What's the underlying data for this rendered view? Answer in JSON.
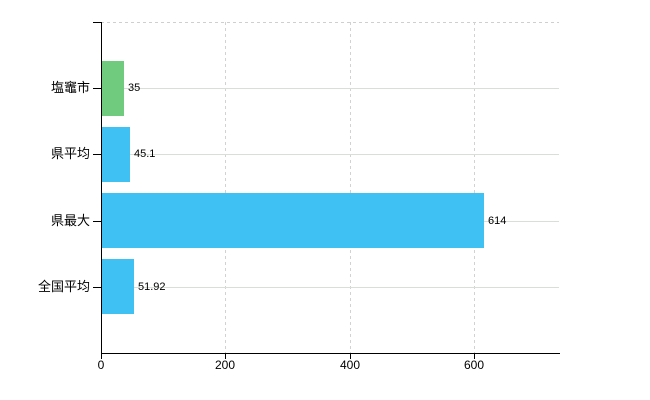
{
  "chart_data": {
    "type": "bar",
    "orientation": "horizontal",
    "categories": [
      "塩竈市",
      "県平均",
      "県最大",
      "全国平均"
    ],
    "values": [
      35,
      45.1,
      614,
      51.92
    ],
    "value_labels": [
      "35",
      "45.1",
      "614",
      "51.92"
    ],
    "series": [
      {
        "name": "value",
        "values": [
          35,
          45.1,
          614,
          51.92
        ]
      }
    ],
    "bar_colors": [
      "#70cb7e",
      "#3fc2f3",
      "#3fc2f3",
      "#3fc2f3"
    ],
    "x_ticks": [
      0,
      200,
      400,
      600
    ],
    "x_tick_labels": [
      "0",
      "200",
      "400",
      "600"
    ],
    "xlim": [
      0,
      736.8
    ],
    "grid": true,
    "legend": false,
    "colors": {
      "bar_highlight": "#70cb7e",
      "bar_default": "#3fc2f3",
      "axis": "#000000",
      "text": "#000000",
      "grid_horizontal": "#d8ded8",
      "grid_vertical": "#d2d2d2",
      "background": "#ffffff"
    }
  }
}
